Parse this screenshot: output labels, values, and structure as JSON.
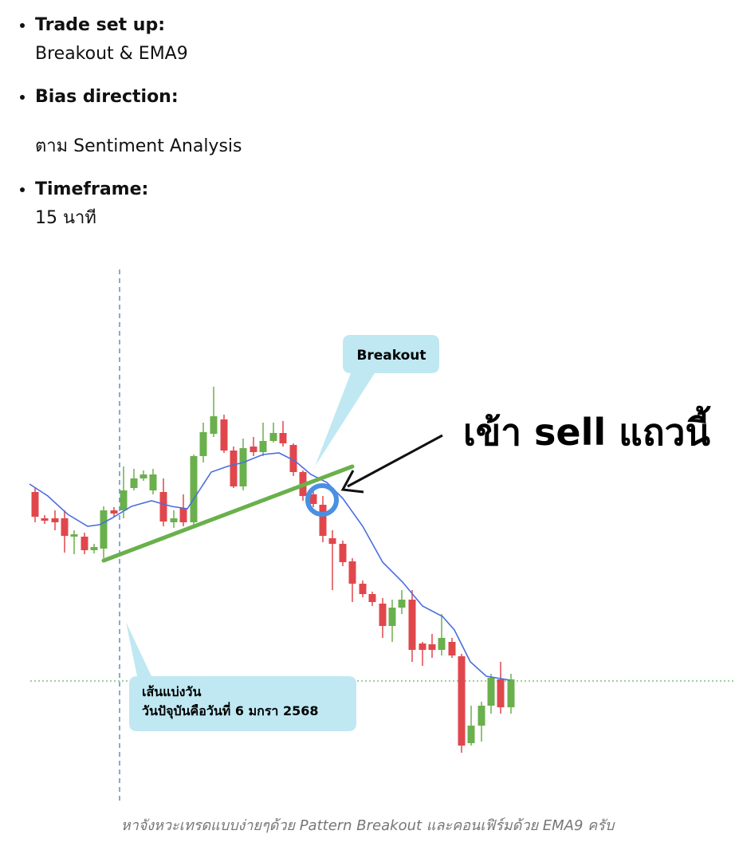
{
  "list": [
    {
      "label": "Trade set up:",
      "text": "Breakout & EMA9"
    },
    {
      "label": "Bias direction:",
      "text": "ตาม Sentiment Analysis"
    },
    {
      "label": "Timeframe:",
      "text": "15 นาที"
    }
  ],
  "figure": {
    "breakout_label": "Breakout",
    "entry_label": "เข้า sell แถวนี้",
    "day_divider_title": "เส้นแบ่งวัน",
    "day_divider_text": "วันปัจุบันคือวันที่ 6 มกรา 2568"
  },
  "caption": "หาจังหวะเทรดแบบง่ายๆด้วย Pattern Breakout และคอนเฟิร์มด้วย EMA9 ครับ"
}
